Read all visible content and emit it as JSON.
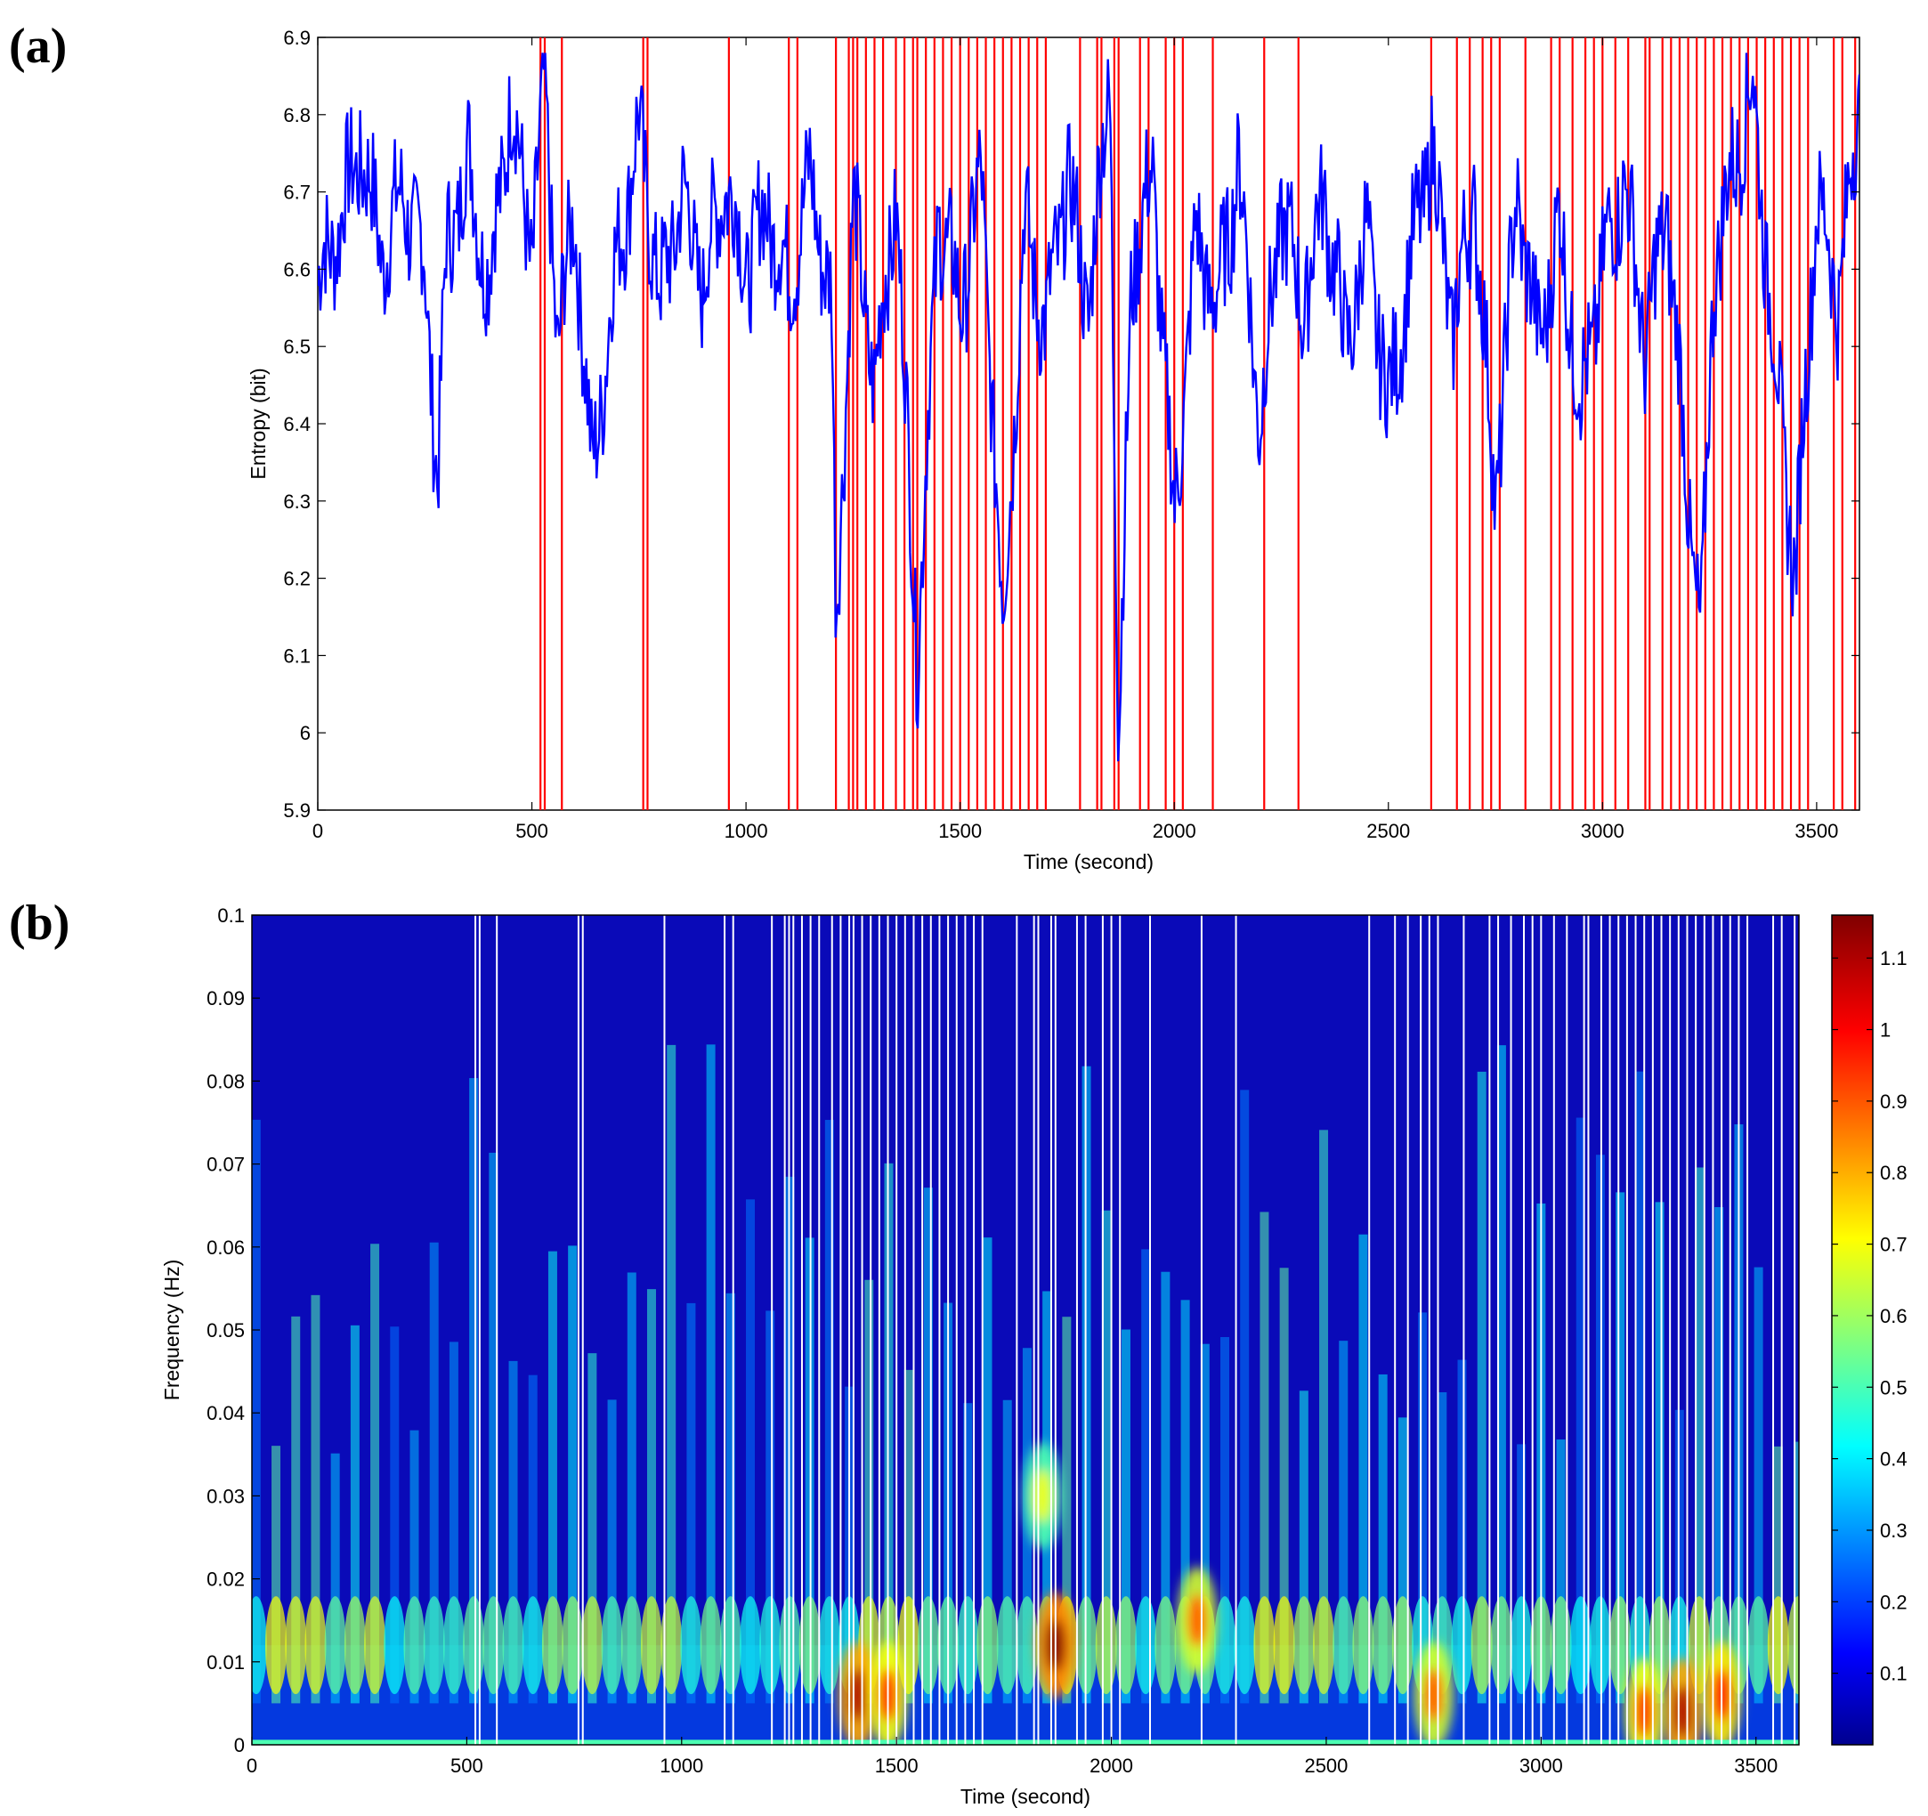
{
  "panels": {
    "a_label": "(a)",
    "b_label": "(b)"
  },
  "chart_data": [
    {
      "id": "a",
      "type": "line",
      "xlabel": "Time (second)",
      "ylabel": "Entropy (bit)",
      "xlim": [
        0,
        3600
      ],
      "ylim": [
        5.9,
        6.9
      ],
      "xticks": [
        0,
        500,
        1000,
        1500,
        2000,
        2500,
        3000,
        3500
      ],
      "yticks": [
        5.9,
        6.0,
        6.1,
        6.2,
        6.3,
        6.4,
        6.5,
        6.6,
        6.7,
        6.8,
        6.9
      ],
      "ytick_labels": [
        "5.9",
        "6",
        "6.1",
        "6.2",
        "6.3",
        "6.4",
        "6.5",
        "6.6",
        "6.7",
        "6.8",
        "6.9"
      ],
      "series": [
        {
          "name": "Entropy",
          "color": "#0000ff",
          "x": [
            0,
            50,
            100,
            150,
            200,
            250,
            280,
            300,
            350,
            400,
            450,
            500,
            530,
            560,
            600,
            640,
            700,
            750,
            800,
            850,
            900,
            950,
            1000,
            1050,
            1100,
            1150,
            1200,
            1210,
            1250,
            1300,
            1350,
            1400,
            1450,
            1500,
            1550,
            1600,
            1650,
            1700,
            1750,
            1800,
            1850,
            1870,
            1900,
            1950,
            2000,
            2050,
            2100,
            2150,
            2200,
            2250,
            2300,
            2350,
            2400,
            2450,
            2500,
            2550,
            2600,
            2650,
            2700,
            2750,
            2800,
            2850,
            2900,
            2950,
            3000,
            3050,
            3100,
            3150,
            3200,
            3230,
            3260,
            3300,
            3350,
            3400,
            3450,
            3500,
            3550,
            3600
          ],
          "y": [
            6.58,
            6.66,
            6.76,
            6.62,
            6.7,
            6.6,
            6.33,
            6.62,
            6.74,
            6.58,
            6.82,
            6.62,
            6.84,
            6.5,
            6.68,
            6.33,
            6.62,
            6.78,
            6.56,
            6.7,
            6.58,
            6.72,
            6.6,
            6.68,
            6.58,
            6.72,
            6.55,
            6.13,
            6.68,
            6.45,
            6.7,
            6.1,
            6.68,
            6.55,
            6.72,
            6.14,
            6.66,
            6.52,
            6.72,
            6.55,
            6.86,
            5.96,
            6.6,
            6.72,
            6.27,
            6.64,
            6.55,
            6.74,
            6.4,
            6.68,
            6.55,
            6.7,
            6.5,
            6.64,
            6.42,
            6.6,
            6.76,
            6.52,
            6.7,
            6.3,
            6.7,
            6.5,
            6.66,
            6.42,
            6.6,
            6.72,
            6.5,
            6.68,
            6.3,
            6.12,
            6.6,
            6.72,
            6.84,
            6.5,
            6.2,
            6.7,
            6.56,
            6.82
          ]
        }
      ],
      "event_lines": {
        "color": "#ff0000",
        "x": [
          520,
          530,
          570,
          760,
          770,
          960,
          1100,
          1120,
          1210,
          1240,
          1250,
          1260,
          1280,
          1300,
          1320,
          1350,
          1370,
          1390,
          1400,
          1420,
          1440,
          1460,
          1480,
          1500,
          1520,
          1540,
          1560,
          1580,
          1600,
          1620,
          1640,
          1660,
          1680,
          1700,
          1780,
          1820,
          1830,
          1860,
          1870,
          1920,
          1940,
          1980,
          2000,
          2020,
          2090,
          2210,
          2290,
          2600,
          2660,
          2690,
          2720,
          2740,
          2760,
          2820,
          2880,
          2900,
          2930,
          2960,
          2980,
          3000,
          3030,
          3060,
          3100,
          3110,
          3140,
          3160,
          3180,
          3200,
          3220,
          3240,
          3260,
          3280,
          3300,
          3320,
          3340,
          3360,
          3380,
          3400,
          3420,
          3440,
          3460,
          3480,
          3540,
          3560,
          3590
        ]
      }
    },
    {
      "id": "b",
      "type": "heatmap",
      "xlabel": "Time (second)",
      "ylabel": "Frequency (Hz)",
      "xlim": [
        0,
        3600
      ],
      "ylim": [
        0,
        0.1
      ],
      "xticks": [
        0,
        500,
        1000,
        1500,
        2000,
        2500,
        3000,
        3500
      ],
      "yticks": [
        0,
        0.01,
        0.02,
        0.03,
        0.04,
        0.05,
        0.06,
        0.07,
        0.08,
        0.09,
        0.1
      ],
      "ytick_labels": [
        "0",
        "0.01",
        "0.02",
        "0.03",
        "0.04",
        "0.05",
        "0.06",
        "0.07",
        "0.08",
        "0.09",
        "0.1"
      ],
      "colorbar": {
        "range": [
          0,
          1.16
        ],
        "ticks": [
          0.1,
          0.2,
          0.3,
          0.4,
          0.5,
          0.6,
          0.7,
          0.8,
          0.9,
          1,
          1.1
        ],
        "tick_labels": [
          "0.1",
          "0.2",
          "0.3",
          "0.4",
          "0.5",
          "0.6",
          "0.7",
          "0.8",
          "0.9",
          "1",
          "1.1"
        ],
        "colormap": "jet"
      },
      "hotspots": [
        {
          "t": 1410,
          "f": 0.006,
          "v": 1.1
        },
        {
          "t": 1480,
          "f": 0.006,
          "v": 0.95
        },
        {
          "t": 1870,
          "f": 0.012,
          "v": 1.15
        },
        {
          "t": 1840,
          "f": 0.03,
          "v": 0.7
        },
        {
          "t": 2200,
          "f": 0.015,
          "v": 0.9
        },
        {
          "t": 2750,
          "f": 0.006,
          "v": 0.9
        },
        {
          "t": 3330,
          "f": 0.004,
          "v": 1.1
        },
        {
          "t": 3420,
          "f": 0.006,
          "v": 1.0
        },
        {
          "t": 3240,
          "f": 0.004,
          "v": 0.95
        }
      ],
      "event_lines": {
        "color": "#ffffff",
        "x": [
          520,
          530,
          570,
          760,
          770,
          960,
          1100,
          1120,
          1210,
          1240,
          1250,
          1260,
          1280,
          1300,
          1320,
          1350,
          1370,
          1390,
          1400,
          1420,
          1440,
          1460,
          1480,
          1500,
          1520,
          1540,
          1560,
          1580,
          1600,
          1620,
          1640,
          1660,
          1680,
          1700,
          1780,
          1820,
          1830,
          1860,
          1870,
          1920,
          1940,
          1980,
          2000,
          2020,
          2090,
          2210,
          2290,
          2600,
          2660,
          2690,
          2720,
          2740,
          2760,
          2820,
          2880,
          2900,
          2930,
          2960,
          2980,
          3000,
          3030,
          3060,
          3100,
          3110,
          3140,
          3160,
          3180,
          3200,
          3220,
          3240,
          3260,
          3280,
          3300,
          3320,
          3340,
          3360,
          3380,
          3400,
          3420,
          3440,
          3460,
          3480,
          3540,
          3560,
          3590
        ]
      }
    }
  ]
}
